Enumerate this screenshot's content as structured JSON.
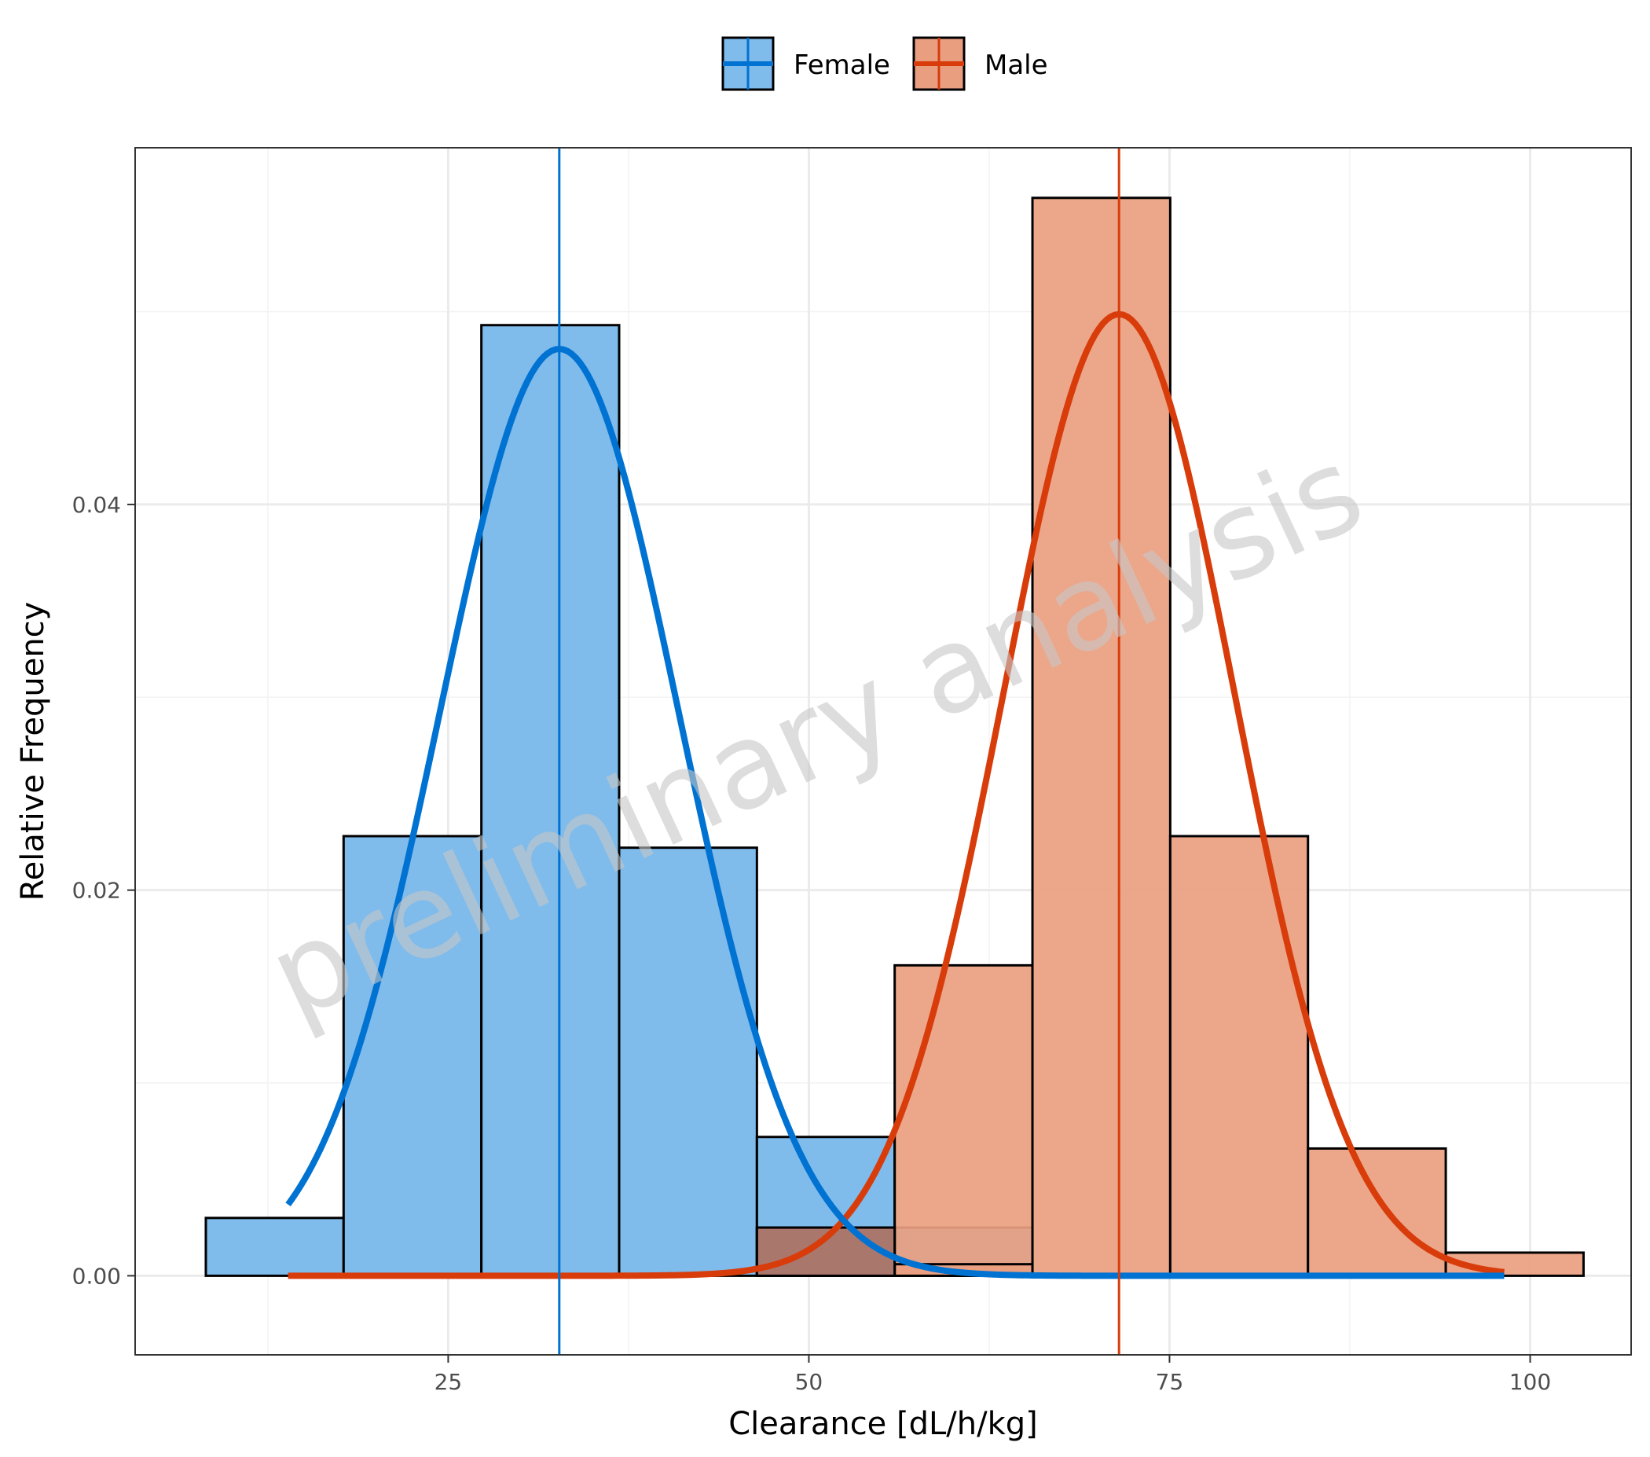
{
  "chart_data": {
    "type": "histogram",
    "title": "",
    "xlabel": "Clearance [dL/h/kg]",
    "ylabel": "Relative Frequency",
    "xlim": [
      3.3,
      107
    ],
    "ylim": [
      -0.0041,
      0.0585
    ],
    "x_ticks": [
      25,
      50,
      75,
      100
    ],
    "y_ticks": [
      0.0,
      0.02,
      0.04
    ],
    "x_tick_labels": [
      "25",
      "50",
      "75",
      "100"
    ],
    "y_tick_labels": [
      "0.00",
      "0.02",
      "0.04"
    ],
    "grid": true,
    "legend": {
      "position": "top",
      "entries": [
        "Female",
        "Male"
      ]
    },
    "watermark": "preliminary analysis",
    "bin_width": 9.55,
    "series": [
      {
        "name": "Female",
        "fill_color": "#7fbbeb",
        "line_color": "#0072d2",
        "bin_edges": [
          8.2,
          17.75,
          27.3,
          36.85,
          46.4,
          55.95,
          65.5
        ],
        "frequencies": [
          0.003,
          0.0228,
          0.0493,
          0.0222,
          0.0072,
          0.0025
        ],
        "mean": 32.7,
        "sd": 8.3
      },
      {
        "name": "Male",
        "fill_color": "#ea9e80",
        "line_color": "#d83c0a",
        "bin_edges": [
          46.4,
          55.95,
          65.5,
          75.05,
          84.6,
          94.15,
          103.7
        ],
        "frequencies": [
          0.0025,
          0.0161,
          0.0559,
          0.0228,
          0.0066,
          0.0012
        ],
        "mean": 71.5,
        "sd": 8.0
      }
    ],
    "male_low_bins": {
      "bin_edges": [
        55.95,
        65.5
      ],
      "frequencies": [
        0.0006
      ]
    }
  }
}
